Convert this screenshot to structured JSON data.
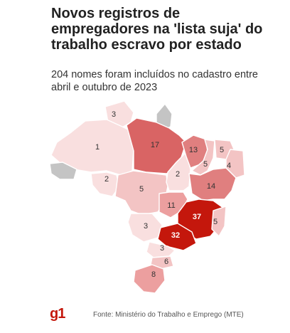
{
  "title": "Novos registros de empregadores na 'lista suja' do trabalho escravo por estado",
  "subtitle": "204 nomes foram incluídos no cadastro entre abril e outubro de 2023",
  "logo": "g1",
  "source": "Fonte: Ministério do Trabalho e Emprego (MTE)",
  "colors": {
    "zero": "#c4c4c4",
    "low": "#f9dfdf",
    "mid_low": "#f3c4c4",
    "mid": "#ec9f9f",
    "mid_high": "#e07f7f",
    "high": "#d96464",
    "max": "#c4170c"
  },
  "states": [
    {
      "name": "RR",
      "value": 3
    },
    {
      "name": "AP",
      "value": 0
    },
    {
      "name": "AM",
      "value": 1
    },
    {
      "name": "PA",
      "value": 17
    },
    {
      "name": "AC",
      "value": 0
    },
    {
      "name": "RO",
      "value": 2
    },
    {
      "name": "MT",
      "value": 5
    },
    {
      "name": "TO",
      "value": 2
    },
    {
      "name": "MA",
      "value": 13
    },
    {
      "name": "PI",
      "value": 5
    },
    {
      "name": "CE",
      "value": 5
    },
    {
      "name": "RN",
      "value": 4
    },
    {
      "name": "BA",
      "value": 14
    },
    {
      "name": "GO",
      "value": 11
    },
    {
      "name": "MG",
      "value": 37
    },
    {
      "name": "ES",
      "value": 5
    },
    {
      "name": "MS",
      "value": 3
    },
    {
      "name": "SP",
      "value": 32
    },
    {
      "name": "PR",
      "value": 3
    },
    {
      "name": "SC",
      "value": 6
    },
    {
      "name": "RS",
      "value": 8
    }
  ]
}
